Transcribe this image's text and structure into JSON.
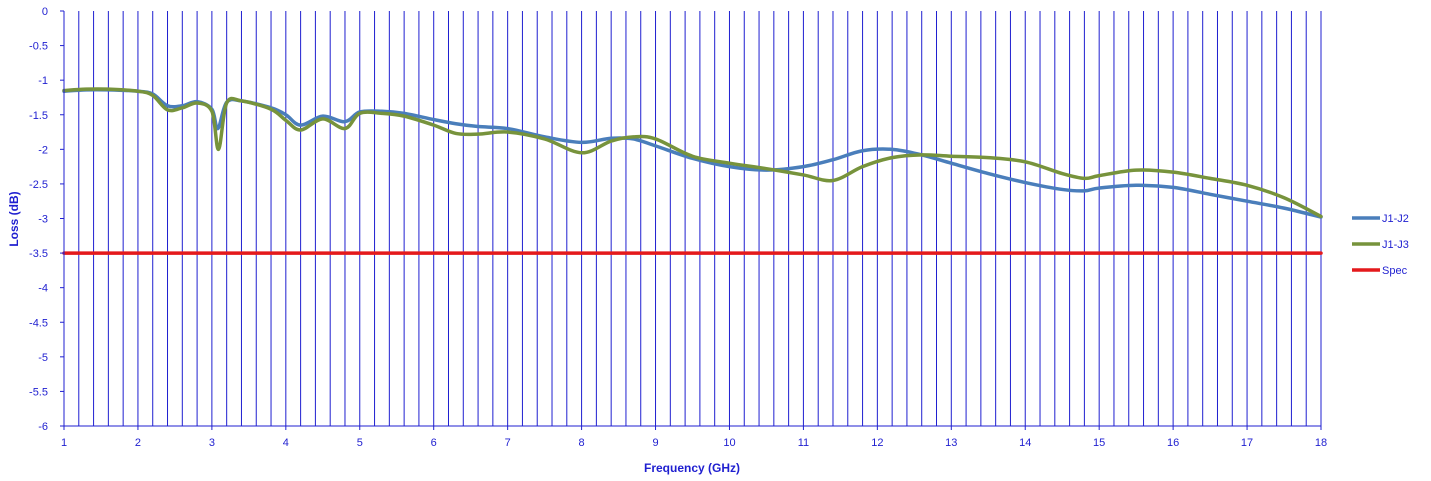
{
  "chart_data": {
    "type": "line",
    "title": "",
    "xlabel": "Frequency (GHz)",
    "ylabel": "Loss (dB)",
    "xlim": [
      1,
      18
    ],
    "ylim": [
      -6,
      0
    ],
    "x_ticks": [
      1,
      2,
      3,
      4,
      5,
      6,
      7,
      8,
      9,
      10,
      11,
      12,
      13,
      14,
      15,
      16,
      17,
      18
    ],
    "y_ticks": [
      0,
      -0.5,
      -1,
      -1.5,
      -2,
      -2.5,
      -3,
      -3.5,
      -4,
      -4.5,
      -5,
      -5.5,
      -6
    ],
    "grid": "vertical lines every 0.2 GHz",
    "legend_position": "right",
    "colors": {
      "grid": "#1f1fd0",
      "axis_text": "#1f1fd0"
    },
    "series": [
      {
        "name": "J1-J2",
        "color": "#4a7ebb",
        "x": [
          1.0,
          1.3,
          1.6,
          2.0,
          2.2,
          2.4,
          2.6,
          2.8,
          3.0,
          3.08,
          3.2,
          3.4,
          3.8,
          4.0,
          4.2,
          4.5,
          4.8,
          5.0,
          5.3,
          5.6,
          6.0,
          6.3,
          6.6,
          7.0,
          7.5,
          8.0,
          8.4,
          8.7,
          9.0,
          9.5,
          10.0,
          10.5,
          11.0,
          11.4,
          11.8,
          12.2,
          12.6,
          13.0,
          13.5,
          14.0,
          14.5,
          14.8,
          15.0,
          15.5,
          16.0,
          16.5,
          17.0,
          17.5,
          18.0
        ],
        "values": [
          -1.16,
          -1.14,
          -1.14,
          -1.16,
          -1.2,
          -1.37,
          -1.37,
          -1.31,
          -1.42,
          -1.7,
          -1.32,
          -1.3,
          -1.4,
          -1.5,
          -1.65,
          -1.52,
          -1.6,
          -1.46,
          -1.45,
          -1.48,
          -1.57,
          -1.63,
          -1.67,
          -1.7,
          -1.82,
          -1.9,
          -1.84,
          -1.85,
          -1.95,
          -2.13,
          -2.25,
          -2.3,
          -2.25,
          -2.15,
          -2.02,
          -2.0,
          -2.08,
          -2.2,
          -2.35,
          -2.48,
          -2.58,
          -2.6,
          -2.56,
          -2.52,
          -2.55,
          -2.65,
          -2.75,
          -2.85,
          -2.98
        ]
      },
      {
        "name": "J1-J3",
        "color": "#77933c",
        "x": [
          1.0,
          1.3,
          1.6,
          2.0,
          2.2,
          2.4,
          2.6,
          2.8,
          3.0,
          3.09,
          3.2,
          3.4,
          3.8,
          4.0,
          4.2,
          4.5,
          4.8,
          5.0,
          5.3,
          5.6,
          6.0,
          6.3,
          6.6,
          7.0,
          7.5,
          8.0,
          8.4,
          8.7,
          9.0,
          9.5,
          10.0,
          10.5,
          11.0,
          11.4,
          11.8,
          12.2,
          12.6,
          13.0,
          13.5,
          14.0,
          14.5,
          14.8,
          15.0,
          15.5,
          16.0,
          16.5,
          17.0,
          17.5,
          18.0
        ],
        "values": [
          -1.15,
          -1.13,
          -1.13,
          -1.16,
          -1.22,
          -1.43,
          -1.4,
          -1.33,
          -1.45,
          -2.0,
          -1.33,
          -1.3,
          -1.42,
          -1.58,
          -1.72,
          -1.56,
          -1.7,
          -1.48,
          -1.48,
          -1.52,
          -1.65,
          -1.77,
          -1.78,
          -1.75,
          -1.85,
          -2.05,
          -1.88,
          -1.82,
          -1.85,
          -2.1,
          -2.2,
          -2.28,
          -2.37,
          -2.45,
          -2.25,
          -2.12,
          -2.08,
          -2.1,
          -2.12,
          -2.18,
          -2.35,
          -2.42,
          -2.38,
          -2.3,
          -2.33,
          -2.42,
          -2.52,
          -2.7,
          -2.97
        ]
      },
      {
        "name": "Spec",
        "color": "#e4191c",
        "x": [
          1,
          18
        ],
        "values": [
          -3.5,
          -3.5
        ]
      }
    ]
  }
}
